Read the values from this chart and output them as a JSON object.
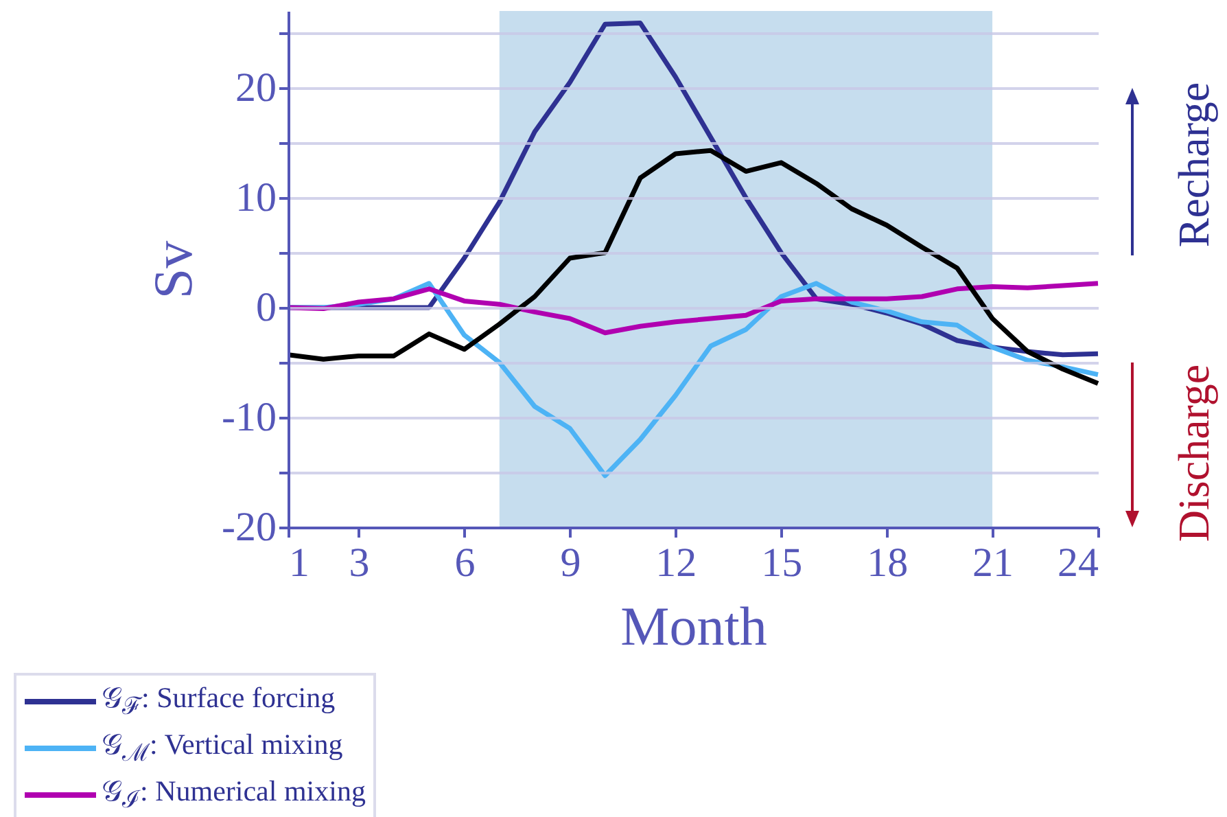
{
  "chart_data": {
    "type": "line",
    "xlabel": "Month",
    "ylabel": "Sv",
    "x": [
      1,
      2,
      3,
      4,
      5,
      6,
      7,
      8,
      9,
      10,
      11,
      12,
      13,
      14,
      15,
      16,
      17,
      18,
      19,
      20,
      21,
      22,
      23,
      24
    ],
    "xlim": [
      1,
      24
    ],
    "xticks": [
      1,
      3,
      6,
      9,
      12,
      15,
      18,
      21,
      24
    ],
    "ylim": [
      -20,
      27
    ],
    "yticks": [
      -20,
      {
        "value": -15,
        "label": null
      },
      -10,
      {
        "value": -5,
        "label": null
      },
      0,
      {
        "value": 5,
        "label": null
      },
      10,
      {
        "value": 15,
        "label": null
      },
      20,
      {
        "value": 25,
        "label": null
      }
    ],
    "grid": "y",
    "legend": "bottom left",
    "bands": [
      {
        "axis": "x",
        "from": 7,
        "to": 21,
        "color": "#c3dbed"
      }
    ],
    "annotations": [
      "Recharge",
      "Discharge"
    ],
    "series": [
      {
        "name": "𝒢$_{ℱ}$: Surface forcing",
        "color": "#2e3192",
        "values": [
          0,
          0,
          0,
          0,
          0,
          4.5,
          9.6,
          16,
          20.5,
          25.8,
          25.9,
          21,
          15.5,
          10,
          5,
          0.8,
          0.3,
          -0.5,
          -1.5,
          -3,
          -3.6,
          -4,
          -4.3,
          -4.2
        ]
      },
      {
        "name": "𝒢$_{ℳ}$: Vertical mixing",
        "color": "#4db3f5",
        "values": [
          0,
          0,
          0.3,
          0.8,
          2.2,
          -2.5,
          -5,
          -9,
          -11,
          -15.3,
          -12,
          -8,
          -3.5,
          -2,
          1,
          2.2,
          0.5,
          -0.3,
          -1.3,
          -1.6,
          -3.6,
          -4.8,
          -5.4,
          -6.1
        ]
      },
      {
        "name": "𝒢$_{ℐ}$: Numerical mixing",
        "color": "#b000b0",
        "values": [
          0,
          -0.1,
          0.5,
          0.8,
          1.7,
          0.6,
          0.3,
          -0.4,
          -1,
          -2.3,
          -1.7,
          -1.3,
          -1,
          -0.7,
          0.6,
          0.8,
          0.8,
          0.8,
          1,
          1.7,
          1.9,
          1.8,
          2,
          2.2
        ]
      },
      {
        "color": "#000000",
        "values": [
          -4.3,
          -4.7,
          -4.4,
          -4.4,
          -2.4,
          -3.8,
          -1.5,
          1,
          4.5,
          5,
          11.8,
          14,
          14.3,
          12.4,
          13.2,
          11.3,
          9,
          7.5,
          5.5,
          3.6,
          -1,
          -4,
          -5.6,
          -6.9
        ]
      }
    ]
  }
}
